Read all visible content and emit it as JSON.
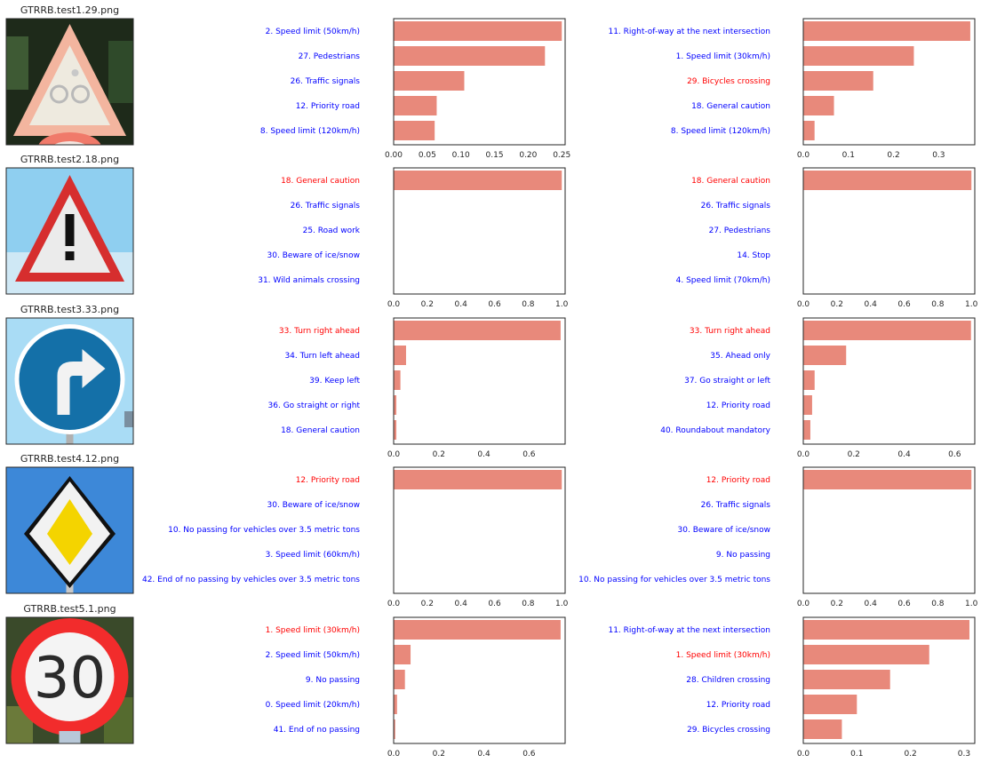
{
  "colors": {
    "bar": "#e8897b",
    "label_default": "#0000ff",
    "label_true": "#ff0000",
    "text": "#262626"
  },
  "rows": [
    {
      "title": "GTRRB.test1.29.png",
      "sign": "bicycles-crossing-sign"
    },
    {
      "title": "GTRRB.test2.18.png",
      "sign": "general-caution-sign"
    },
    {
      "title": "GTRRB.test3.33.png",
      "sign": "turn-right-ahead-sign"
    },
    {
      "title": "GTRRB.test4.12.png",
      "sign": "priority-road-sign"
    },
    {
      "title": "GTRRB.test5.1.png",
      "sign": "speed-limit-30-sign"
    }
  ],
  "chart_data": [
    {
      "type": "bar",
      "row": 1,
      "col": 1,
      "xlim": [
        0,
        0.255
      ],
      "ticks": [
        "0.00",
        "0.05",
        "0.10",
        "0.15",
        "0.20",
        "0.25"
      ],
      "tick_values": [
        0,
        0.05,
        0.1,
        0.15,
        0.2,
        0.25
      ],
      "categories": [
        "2. Speed limit (50km/h)",
        "27. Pedestrians",
        "26. Traffic signals",
        "12. Priority road",
        "8. Speed limit (120km/h)"
      ],
      "values": [
        0.25,
        0.225,
        0.105,
        0.064,
        0.061
      ],
      "highlight": [
        false,
        false,
        false,
        false,
        false
      ]
    },
    {
      "type": "bar",
      "row": 1,
      "col": 2,
      "xlim": [
        0,
        0.38
      ],
      "ticks": [
        "0.0",
        "0.1",
        "0.2",
        "0.3"
      ],
      "tick_values": [
        0,
        0.1,
        0.2,
        0.3
      ],
      "categories": [
        "11. Right-of-way at the next intersection",
        "1. Speed limit (30km/h)",
        "29. Bicycles crossing",
        "18. General caution",
        "8. Speed limit (120km/h)"
      ],
      "values": [
        0.37,
        0.245,
        0.155,
        0.068,
        0.025
      ],
      "highlight": [
        false,
        false,
        true,
        false,
        false
      ]
    },
    {
      "type": "bar",
      "row": 2,
      "col": 1,
      "xlim": [
        0,
        1.02
      ],
      "ticks": [
        "0.0",
        "0.2",
        "0.4",
        "0.6",
        "0.8",
        "1.0"
      ],
      "tick_values": [
        0,
        0.2,
        0.4,
        0.6,
        0.8,
        1.0
      ],
      "categories": [
        "18. General caution",
        "26. Traffic signals",
        "25. Road work",
        "30. Beware of ice/snow",
        "31. Wild animals crossing"
      ],
      "values": [
        1.0,
        0,
        0,
        0,
        0
      ],
      "highlight": [
        true,
        false,
        false,
        false,
        false
      ]
    },
    {
      "type": "bar",
      "row": 2,
      "col": 2,
      "xlim": [
        0,
        1.02
      ],
      "ticks": [
        "0.0",
        "0.2",
        "0.4",
        "0.6",
        "0.8",
        "1.0"
      ],
      "tick_values": [
        0,
        0.2,
        0.4,
        0.6,
        0.8,
        1.0
      ],
      "categories": [
        "18. General caution",
        "26. Traffic signals",
        "27. Pedestrians",
        "14. Stop",
        "4. Speed limit (70km/h)"
      ],
      "values": [
        1.0,
        0,
        0,
        0,
        0
      ],
      "highlight": [
        true,
        false,
        false,
        false,
        false
      ]
    },
    {
      "type": "bar",
      "row": 3,
      "col": 1,
      "xlim": [
        0,
        0.76
      ],
      "ticks": [
        "0.0",
        "0.2",
        "0.4",
        "0.6"
      ],
      "tick_values": [
        0,
        0.2,
        0.4,
        0.6
      ],
      "categories": [
        "33. Turn right ahead",
        "34. Turn left ahead",
        "39. Keep left",
        "36. Go straight or right",
        "18. General caution"
      ],
      "values": [
        0.74,
        0.055,
        0.03,
        0.012,
        0.012
      ],
      "highlight": [
        true,
        false,
        false,
        false,
        false
      ]
    },
    {
      "type": "bar",
      "row": 3,
      "col": 2,
      "xlim": [
        0,
        0.68
      ],
      "ticks": [
        "0.0",
        "0.2",
        "0.4",
        "0.6"
      ],
      "tick_values": [
        0,
        0.2,
        0.4,
        0.6
      ],
      "categories": [
        "33. Turn right ahead",
        "35. Ahead only",
        "37. Go straight or left",
        "12. Priority road",
        "40. Roundabout mandatory"
      ],
      "values": [
        0.665,
        0.17,
        0.045,
        0.035,
        0.028
      ],
      "highlight": [
        true,
        false,
        false,
        false,
        false
      ]
    },
    {
      "type": "bar",
      "row": 4,
      "col": 1,
      "xlim": [
        0,
        1.02
      ],
      "ticks": [
        "0.0",
        "0.2",
        "0.4",
        "0.6",
        "0.8",
        "1.0"
      ],
      "tick_values": [
        0,
        0.2,
        0.4,
        0.6,
        0.8,
        1.0
      ],
      "categories": [
        "12. Priority road",
        "30. Beware of ice/snow",
        "10. No passing for vehicles over 3.5 metric tons",
        "3. Speed limit (60km/h)",
        "42. End of no passing by vehicles over 3.5 metric tons"
      ],
      "values": [
        1.0,
        0,
        0,
        0,
        0
      ],
      "highlight": [
        true,
        false,
        false,
        false,
        false
      ]
    },
    {
      "type": "bar",
      "row": 4,
      "col": 2,
      "xlim": [
        0,
        1.02
      ],
      "ticks": [
        "0.0",
        "0.2",
        "0.4",
        "0.6",
        "0.8",
        "1.0"
      ],
      "tick_values": [
        0,
        0.2,
        0.4,
        0.6,
        0.8,
        1.0
      ],
      "categories": [
        "12. Priority road",
        "26. Traffic signals",
        "30. Beware of ice/snow",
        "9. No passing",
        "10. No passing for vehicles over 3.5 metric tons"
      ],
      "values": [
        1.0,
        0,
        0,
        0,
        0
      ],
      "highlight": [
        true,
        false,
        false,
        false,
        false
      ]
    },
    {
      "type": "bar",
      "row": 5,
      "col": 1,
      "xlim": [
        0,
        0.76
      ],
      "ticks": [
        "0.0",
        "0.2",
        "0.4",
        "0.6"
      ],
      "tick_values": [
        0,
        0.2,
        0.4,
        0.6
      ],
      "categories": [
        "1. Speed limit (30km/h)",
        "2. Speed limit (50km/h)",
        "9. No passing",
        "0. Speed limit (20km/h)",
        "41. End of no passing"
      ],
      "values": [
        0.74,
        0.075,
        0.05,
        0.015,
        0.007
      ],
      "highlight": [
        true,
        false,
        false,
        false,
        false
      ]
    },
    {
      "type": "bar",
      "row": 5,
      "col": 2,
      "xlim": [
        0,
        0.32
      ],
      "ticks": [
        "0.0",
        "0.1",
        "0.2",
        "0.3"
      ],
      "tick_values": [
        0,
        0.1,
        0.2,
        0.3
      ],
      "categories": [
        "11. Right-of-way at the next intersection",
        "1. Speed limit (30km/h)",
        "28. Children crossing",
        "12. Priority road",
        "29. Bicycles crossing"
      ],
      "values": [
        0.31,
        0.235,
        0.162,
        0.1,
        0.072
      ],
      "highlight": [
        false,
        true,
        false,
        false,
        false
      ]
    }
  ]
}
